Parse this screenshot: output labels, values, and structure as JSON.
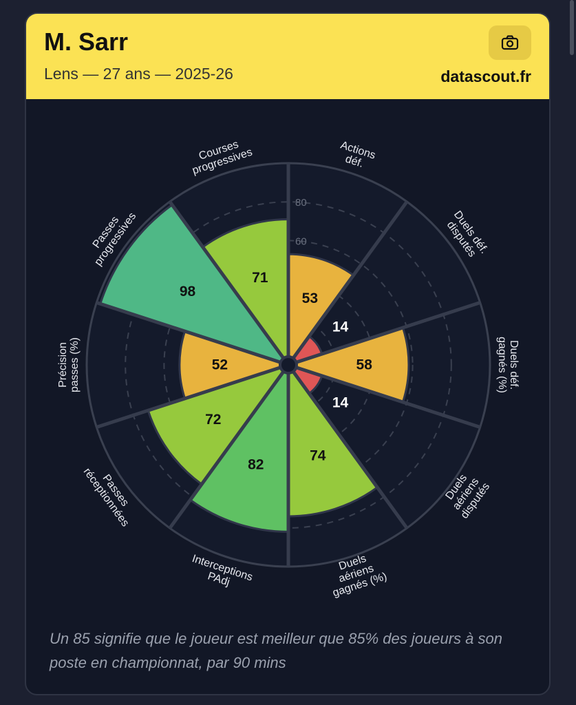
{
  "header": {
    "player_name": "M. Sarr",
    "subtitle": "Lens — 27 ans — 2025-26",
    "brand": "datascout.fr",
    "camera_icon": "camera-icon"
  },
  "footnote": "Un 85 signifie que le joueur est meilleur que 85% des joueurs à son poste en championnat, par 90 mins",
  "chart_data": {
    "type": "radar",
    "scale_max": 100,
    "grid_labels": [
      "60",
      "80"
    ],
    "slices": [
      {
        "label": [
          "Actions",
          "déf."
        ],
        "value": 53,
        "color": "#e8b33e"
      },
      {
        "label": [
          "Duels déf.",
          "disputés"
        ],
        "value": 14,
        "color": "#e05656"
      },
      {
        "label": [
          "Duels déf.",
          "gagnés (%)"
        ],
        "value": 58,
        "color": "#e8b33e"
      },
      {
        "label": [
          "Duels",
          "aériens",
          "disputés"
        ],
        "value": 14,
        "color": "#e05656"
      },
      {
        "label": [
          "Duels",
          "aériens",
          "gagnés (%)"
        ],
        "value": 74,
        "color": "#96c93d"
      },
      {
        "label": [
          "Interceptions",
          "PAdj"
        ],
        "value": 82,
        "color": "#5fc163"
      },
      {
        "label": [
          "Passes",
          "réceptionnées"
        ],
        "value": 72,
        "color": "#96c93d"
      },
      {
        "label": [
          "Précision",
          "passes (%)"
        ],
        "value": 52,
        "color": "#e8b33e"
      },
      {
        "label": [
          "Passes",
          "progressives"
        ],
        "value": 98,
        "color": "#4fb886"
      },
      {
        "label": [
          "Courses",
          "progressives"
        ],
        "value": 71,
        "color": "#96c93d"
      }
    ]
  }
}
